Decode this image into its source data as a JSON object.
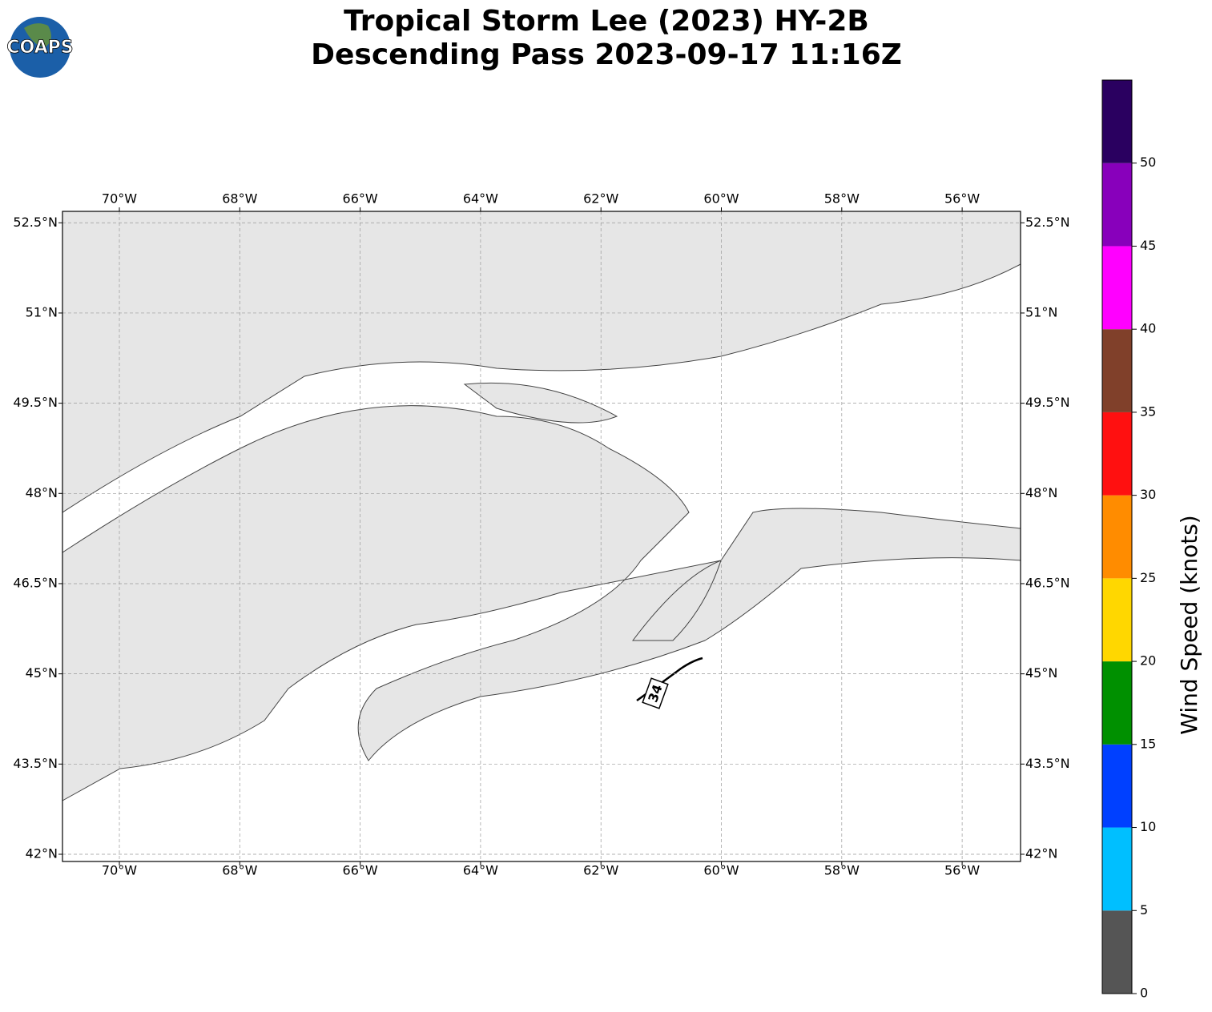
{
  "header": {
    "title_lines": [
      "Tropical Storm Lee (2023) HY-2B",
      "Descending Pass 2023-09-17 11:16Z"
    ],
    "logo": "COAPS"
  },
  "map": {
    "xlim": [
      -70.945,
      -55.03
    ],
    "ylim": [
      41.88,
      52.69
    ],
    "xticks": [
      {
        "value": -70,
        "label": "70°W"
      },
      {
        "value": -68,
        "label": "68°W"
      },
      {
        "value": -66,
        "label": "66°W"
      },
      {
        "value": -64,
        "label": "64°W"
      },
      {
        "value": -62,
        "label": "62°W"
      },
      {
        "value": -60,
        "label": "60°W"
      },
      {
        "value": -58,
        "label": "58°W"
      },
      {
        "value": -56,
        "label": "56°W"
      }
    ],
    "yticks": [
      {
        "value": 42,
        "label": "42°N"
      },
      {
        "value": 43.5,
        "label": "43.5°N"
      },
      {
        "value": 45,
        "label": "45°N"
      },
      {
        "value": 46.5,
        "label": "46.5°N"
      },
      {
        "value": 48,
        "label": "48°N"
      },
      {
        "value": 49.5,
        "label": "49.5°N"
      },
      {
        "value": 51,
        "label": "51°N"
      },
      {
        "value": 52.5,
        "label": "52.5°N"
      }
    ],
    "grid": true,
    "contour_label": "34"
  },
  "colorbar": {
    "label": "Wind Speed (knots)",
    "bounds": [
      0,
      5,
      10,
      15,
      20,
      25,
      30,
      35,
      40,
      45,
      50,
      55
    ],
    "colors": [
      "#555555",
      "#00bfff",
      "#0040ff",
      "#009000",
      "#ffd700",
      "#ff8c00",
      "#ff1010",
      "#80402a",
      "#ff00ff",
      "#8800bb",
      "#2a0060"
    ],
    "ticks": [
      0,
      5,
      10,
      15,
      20,
      25,
      30,
      35,
      40,
      45,
      50
    ]
  }
}
